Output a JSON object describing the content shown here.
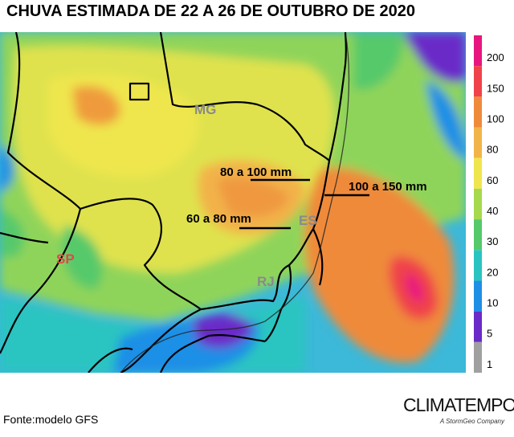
{
  "title": "CHUVA ESTIMADA DE 22 A 26 DE OUTUBRO DE 2020",
  "source": "Fonte:modelo GFS",
  "brand": {
    "name": "CLIMATEMPO",
    "tagline": "A StormGeo Company"
  },
  "states": {
    "mg": "MG",
    "sp": "SP",
    "rj": "RJ",
    "es": "ES"
  },
  "annotations": {
    "a1": "80 a 100 mm",
    "a2": "100 a 150 mm",
    "a3": "60 a 80 mm"
  },
  "legend": {
    "unit_values": [
      "200",
      "150",
      "100",
      "80",
      "60",
      "40",
      "30",
      "20",
      "10",
      "5",
      "1"
    ],
    "colors": [
      "#e8157f",
      "#f0424a",
      "#ef8a3b",
      "#f2b44a",
      "#efe64d",
      "#a6d94e",
      "#56c96b",
      "#29c4c1",
      "#1f8fe6",
      "#6a2bc8",
      "#a0a0a0"
    ]
  }
}
